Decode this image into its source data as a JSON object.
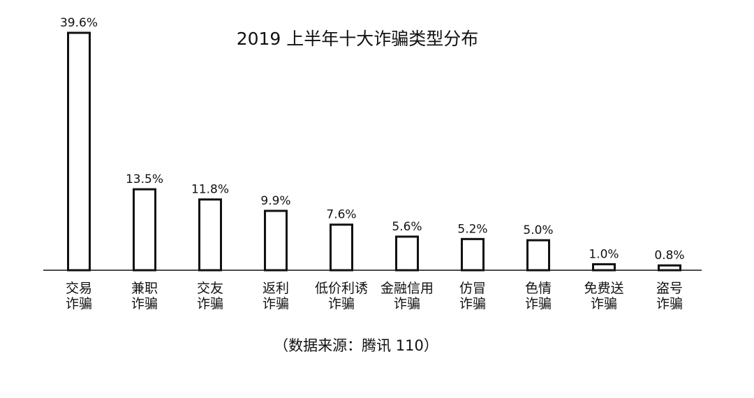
{
  "chart_data": {
    "type": "bar",
    "title": "2019 上半年十大诈骗类型分布",
    "source": "（数据来源：腾讯 110）",
    "categories": [
      [
        "交易",
        "诈骗"
      ],
      [
        "兼职",
        "诈骗"
      ],
      [
        "交友",
        "诈骗"
      ],
      [
        "返利",
        "诈骗"
      ],
      [
        "低价利诱",
        "诈骗"
      ],
      [
        "金融信用",
        "诈骗"
      ],
      [
        "仿冒",
        "诈骗"
      ],
      [
        "色情",
        "诈骗"
      ],
      [
        "免费送",
        "诈骗"
      ],
      [
        "盗号",
        "诈骗"
      ]
    ],
    "values": [
      39.6,
      13.5,
      11.8,
      9.9,
      7.6,
      5.6,
      5.2,
      5.0,
      1.0,
      0.8
    ],
    "value_labels": [
      "39.6%",
      "13.5%",
      "11.8%",
      "9.9%",
      "7.6%",
      "5.6%",
      "5.2%",
      "5.0%",
      "1.0%",
      "0.8%"
    ],
    "ylim": [
      0,
      39.6
    ],
    "grid": false,
    "legend": "none",
    "colors": {
      "bar_fill": "#ffffff",
      "bar_stroke": "#111111",
      "axis": "#111111",
      "text": "#111111"
    }
  }
}
